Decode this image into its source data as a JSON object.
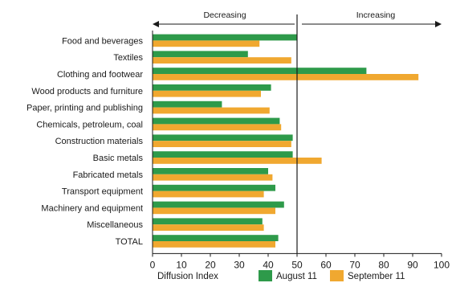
{
  "chart_data": {
    "type": "bar",
    "orientation": "horizontal",
    "title": "",
    "xlabel": "Diffusion Index",
    "ylabel": "",
    "xlim": [
      0,
      100
    ],
    "x_ticks": [
      0,
      10,
      20,
      30,
      40,
      50,
      60,
      70,
      80,
      90,
      100
    ],
    "reference_line": 50,
    "direction_labels": {
      "left": "Decreasing",
      "right": "Increasing"
    },
    "categories": [
      "Food and beverages",
      "Textiles",
      "Clothing and footwear",
      "Wood products and furniture",
      "Paper, printing and publishing",
      "Chemicals, petroleum, coal",
      "Construction materials",
      "Basic metals",
      "Fabricated metals",
      "Transport equipment",
      "Machinery and equipment",
      "Miscellaneous",
      "TOTAL"
    ],
    "series": [
      {
        "name": "August 11",
        "color": "#2e9a4a",
        "values": [
          50,
          33,
          74,
          41,
          24,
          44,
          48.5,
          48.5,
          40,
          42.5,
          45.5,
          38,
          43.5
        ]
      },
      {
        "name": "September 11",
        "color": "#f0a830",
        "values": [
          37,
          48,
          92,
          37.5,
          40.5,
          44.5,
          48,
          58.5,
          41.5,
          38.5,
          42.5,
          38.5,
          42.5
        ]
      }
    ],
    "grid": false,
    "legend_position": "bottom"
  }
}
